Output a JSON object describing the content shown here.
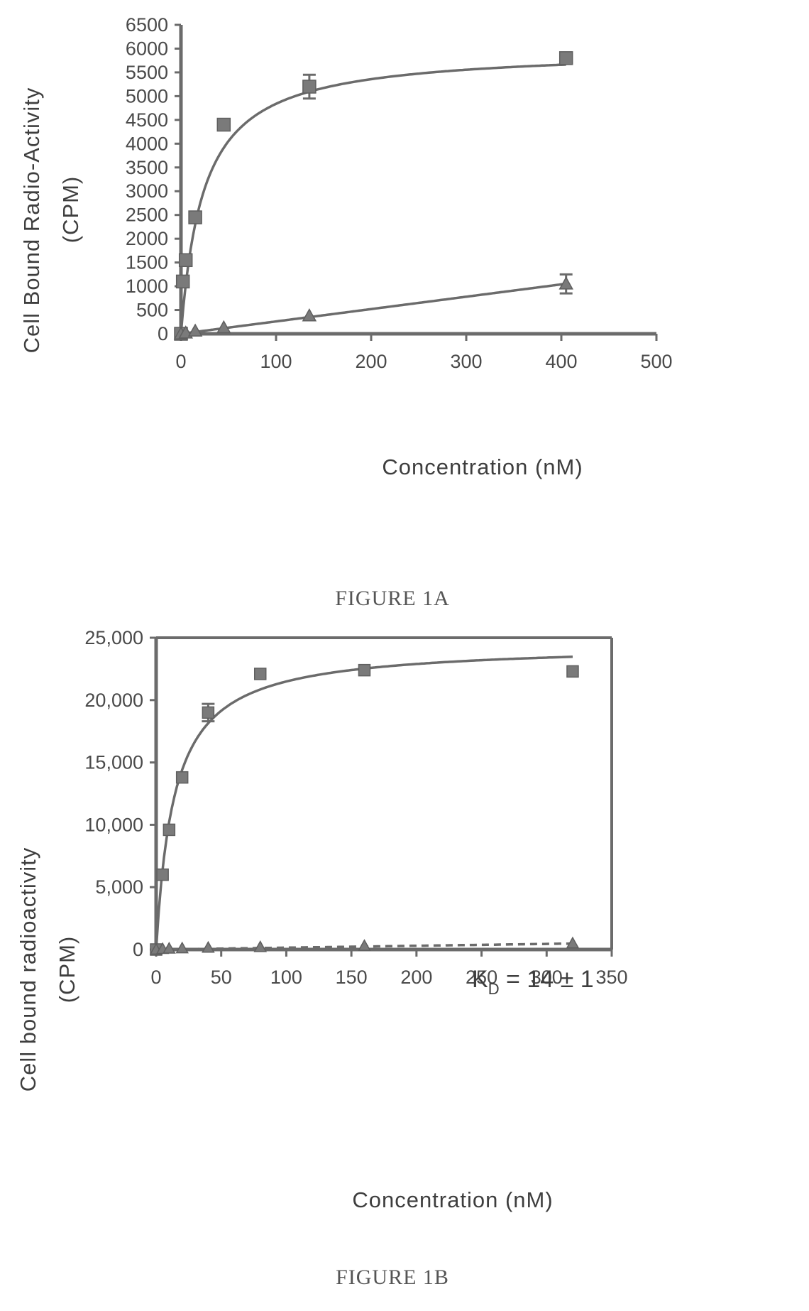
{
  "chart_data": [
    {
      "type": "scatter",
      "title": "",
      "caption": "FIGURE 1A",
      "xlabel": "Concentration (nM)",
      "ylabel_line1": "Cell Bound Radio-Activity",
      "ylabel_line2": "(CPM)",
      "xlim": [
        0,
        500
      ],
      "ylim": [
        0,
        6500
      ],
      "xticks": [
        0,
        100,
        200,
        300,
        400,
        500
      ],
      "yticks": [
        0,
        500,
        1000,
        1500,
        2000,
        2500,
        3000,
        3500,
        4000,
        4500,
        5000,
        5500,
        6000,
        6500
      ],
      "box": false,
      "grid": false,
      "series": [
        {
          "marker": "square",
          "points": [
            {
              "x": 0,
              "y": 0
            },
            {
              "x": 2,
              "y": 1100
            },
            {
              "x": 5,
              "y": 1550
            },
            {
              "x": 15,
              "y": 2450
            },
            {
              "x": 45,
              "y": 4400
            },
            {
              "x": 135,
              "y": 5200,
              "err": 250
            },
            {
              "x": 405,
              "y": 5800
            }
          ],
          "fit": {
            "model": "hyperbola",
            "bmax": 6000,
            "kd": 24
          }
        },
        {
          "marker": "triangle",
          "points": [
            {
              "x": 0,
              "y": 0
            },
            {
              "x": 5,
              "y": 20
            },
            {
              "x": 15,
              "y": 60
            },
            {
              "x": 45,
              "y": 130
            },
            {
              "x": 135,
              "y": 380
            },
            {
              "x": 405,
              "y": 1050,
              "err": 200
            }
          ],
          "fit": {
            "model": "linear",
            "slope": 2.6
          }
        }
      ]
    },
    {
      "type": "scatter",
      "title": "",
      "caption": "FIGURE 1B",
      "xlabel": "Concentration (nM)",
      "ylabel_line1": "Cell bound radioactivity",
      "ylabel_line2": "(CPM)",
      "xlim": [
        0,
        350
      ],
      "ylim": [
        0,
        25000
      ],
      "xticks": [
        0,
        50,
        100,
        150,
        200,
        250,
        300,
        350
      ],
      "yticks": [
        0,
        5000,
        10000,
        15000,
        20000,
        25000
      ],
      "ytick_labels": [
        "0",
        "5,000",
        "10,000",
        "15,000",
        "20,000",
        "25,000"
      ],
      "box": true,
      "grid": false,
      "annotation": {
        "main": "K",
        "sub": "D",
        "rest": " = 14 ± 1"
      },
      "series": [
        {
          "marker": "square",
          "points": [
            {
              "x": 0,
              "y": 0
            },
            {
              "x": 5,
              "y": 6000
            },
            {
              "x": 10,
              "y": 9600
            },
            {
              "x": 20,
              "y": 13800
            },
            {
              "x": 40,
              "y": 19000,
              "err": 700
            },
            {
              "x": 80,
              "y": 22100
            },
            {
              "x": 160,
              "y": 22400
            },
            {
              "x": 320,
              "y": 22300
            }
          ],
          "fit": {
            "model": "hyperbola",
            "bmax": 24500,
            "kd": 14
          }
        },
        {
          "marker": "triangle",
          "points": [
            {
              "x": 0,
              "y": 0
            },
            {
              "x": 5,
              "y": 50
            },
            {
              "x": 10,
              "y": 80
            },
            {
              "x": 20,
              "y": 100
            },
            {
              "x": 40,
              "y": 150
            },
            {
              "x": 80,
              "y": 200
            },
            {
              "x": 160,
              "y": 300
            },
            {
              "x": 320,
              "y": 500
            }
          ],
          "fit": {
            "model": "linear",
            "slope": 1.5,
            "dashed": true
          }
        }
      ]
    }
  ]
}
